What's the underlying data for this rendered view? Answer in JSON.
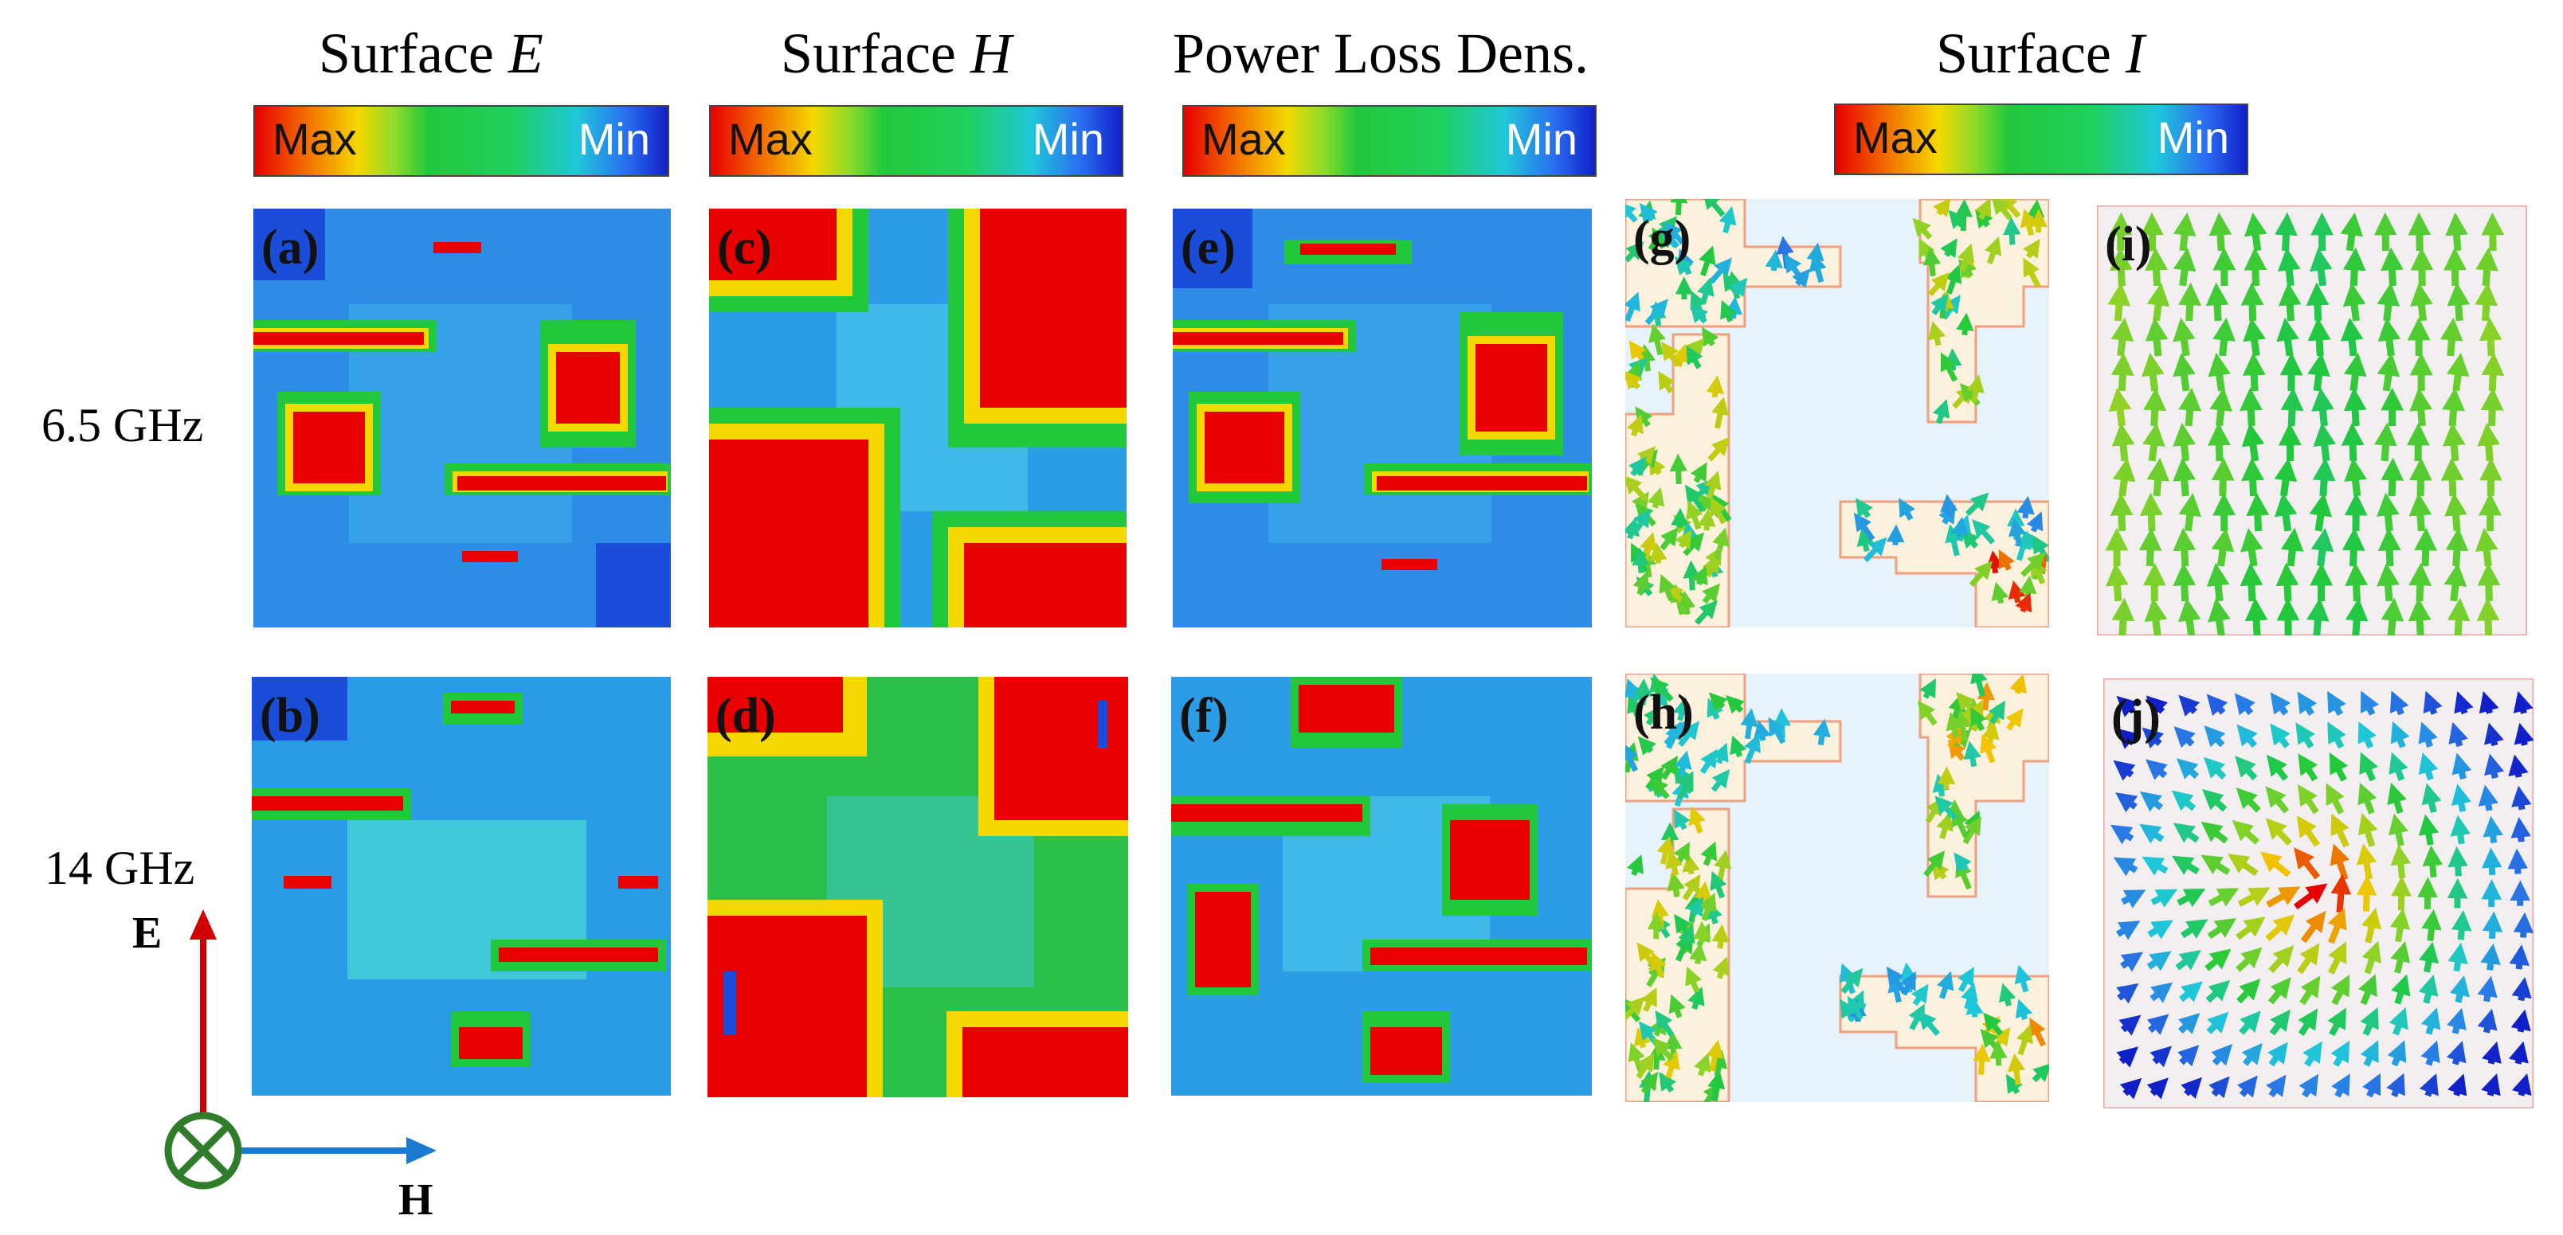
{
  "columns": {
    "e_prefix": "Surface ",
    "e_symbol": "E",
    "h_prefix": "Surface ",
    "h_symbol": "H",
    "power": "Power Loss Dens.",
    "i_prefix": "Surface ",
    "i_symbol": "I"
  },
  "colorbar": {
    "max": "Max",
    "min": "Min"
  },
  "rows": [
    "6.5 GHz",
    "14 GHz"
  ],
  "panels": [
    "(a)",
    "(b)",
    "(c)",
    "(d)",
    "(e)",
    "(f)",
    "(g)",
    "(h)",
    "(i)",
    "(j)"
  ],
  "axes": {
    "vertical": "E",
    "horizontal": "H"
  },
  "colors": {
    "max": "#e80000",
    "min": "#1020c8",
    "field_low": "#2a8ae8",
    "field_mid": "#22c83c",
    "e_axis": "#d00000",
    "h_axis": "#1a7ad0",
    "k_symbol": "#2f7d2a",
    "patch_fill": "#fbf1dc",
    "patch_edge": "#f0a080",
    "bg_pale": "#e6f3fb",
    "bg_grey": "#f3eff1"
  }
}
